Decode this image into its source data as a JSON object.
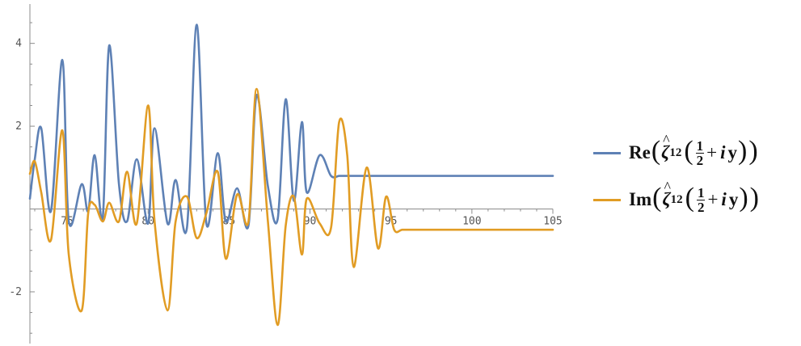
{
  "chart_data": {
    "type": "line",
    "xlim": [
      72.7,
      105
    ],
    "ylim": [
      -3.25,
      4.95
    ],
    "x_ticks": [
      75,
      80,
      85,
      90,
      95,
      100,
      105
    ],
    "y_ticks": [
      -2,
      2,
      4
    ],
    "x_tick_labels": [
      "75",
      "80",
      "85",
      "90",
      "95",
      "100",
      "105"
    ],
    "y_tick_labels": [
      "-2",
      "2",
      "4"
    ],
    "grid": false,
    "legend_position": "right",
    "series": [
      {
        "name": "Re(ζ̂12(1/2 + i y))",
        "color": "#5e81b5",
        "x": [
          72.7,
          73.0,
          73.4,
          74.0,
          74.7,
          75.1,
          75.9,
          76.3,
          76.7,
          77.2,
          77.6,
          78.2,
          78.7,
          79.3,
          80.0,
          80.4,
          81.2,
          81.7,
          82.4,
          83.0,
          83.6,
          84.3,
          84.8,
          85.5,
          86.2,
          86.7,
          87.4,
          88.0,
          88.5,
          89.0,
          89.5,
          89.8,
          90.6,
          91.3,
          91.8,
          92.3,
          92.7,
          93.5,
          94.2,
          94.7,
          95.2,
          95.7,
          96.3,
          97.0,
          97.7,
          98.5,
          99.1,
          99.7,
          100.2,
          100.8,
          101.4,
          101.9,
          102.3,
          102.9,
          103.7,
          104.5,
          105.0
        ],
        "y": [
          0.25,
          1.2,
          1.95,
          -0.05,
          3.6,
          -0.3,
          0.6,
          -0.05,
          1.3,
          -0.2,
          3.95,
          0.6,
          -0.3,
          1.2,
          -0.35,
          1.95,
          -0.35,
          0.7,
          -0.45,
          4.45,
          -0.35,
          1.35,
          -0.3,
          0.5,
          -0.4,
          2.75,
          0.55,
          -0.25,
          2.65,
          0.2,
          2.1,
          0.4,
          1.3,
          0.8,
          0.8,
          0.8,
          0.8,
          0.8,
          0.8,
          0.8,
          0.8,
          0.8,
          0.8,
          0.8,
          0.8,
          0.8,
          0.8,
          0.8,
          0.8,
          0.8,
          0.8,
          0.8,
          0.8,
          0.8,
          0.8,
          0.8,
          0.8
        ]
      },
      {
        "name": "Im(ζ̂12(1/2 + i y))",
        "color": "#e19c24",
        "x": [
          72.7,
          73.0,
          73.4,
          74.0,
          74.7,
          75.1,
          75.9,
          76.3,
          76.7,
          77.2,
          77.6,
          78.2,
          78.7,
          79.3,
          80.0,
          80.4,
          81.2,
          81.7,
          82.4,
          83.0,
          83.6,
          84.3,
          84.8,
          85.5,
          86.2,
          86.7,
          87.4,
          88.0,
          88.5,
          89.0,
          89.5,
          89.8,
          90.6,
          91.3,
          91.8,
          92.3,
          92.7,
          93.5,
          94.2,
          94.7,
          95.2,
          95.7,
          96.3,
          97.0,
          97.7,
          98.5,
          99.1,
          99.7,
          100.2,
          100.8,
          101.4,
          101.9,
          102.3,
          102.9,
          103.7,
          104.5,
          105.0
        ],
        "y": [
          0.85,
          1.15,
          0.4,
          -0.75,
          1.9,
          -1.1,
          -2.45,
          -0.1,
          0.1,
          -0.3,
          0.15,
          -0.3,
          0.9,
          -0.35,
          2.5,
          -0.3,
          -2.45,
          -0.3,
          0.3,
          -0.7,
          -0.1,
          0.9,
          -1.2,
          0.35,
          -0.3,
          2.9,
          -0.3,
          -2.8,
          -0.4,
          0.3,
          -1.1,
          0.25,
          -0.35,
          -0.45,
          2.1,
          1.3,
          -1.4,
          1.0,
          -0.95,
          0.3,
          -0.5,
          -0.5,
          -0.5,
          -0.5,
          -0.5,
          -0.5,
          -0.5,
          -0.5,
          -0.5,
          -0.5,
          -0.5,
          -0.5,
          -0.5,
          -0.5,
          -0.5,
          -0.5,
          -0.5
        ]
      }
    ]
  },
  "legend": {
    "items": [
      {
        "func": "Re",
        "sub": "12",
        "num": "1",
        "den": "2",
        "plus": "+",
        "i": "i",
        "var": "y"
      },
      {
        "func": "Im",
        "sub": "12",
        "num": "1",
        "den": "2",
        "plus": "+",
        "i": "i",
        "var": "y"
      }
    ]
  }
}
